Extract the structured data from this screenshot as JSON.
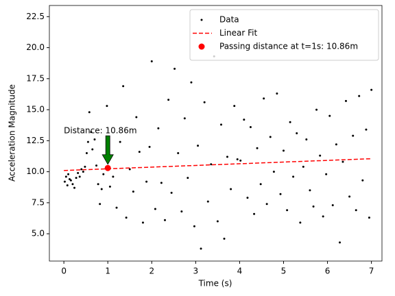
{
  "chart_data": {
    "type": "scatter",
    "xlabel": "Time (s)",
    "ylabel": "Acceleration Magnitude",
    "xlim": [
      -0.33,
      7.24
    ],
    "ylim": [
      2.8,
      23.4
    ],
    "xticks": [
      0,
      1,
      2,
      3,
      4,
      5,
      6,
      7
    ],
    "yticks": [
      {
        "value": 5,
        "label": "5.0"
      },
      7.5,
      {
        "value": 10,
        "label": "10.0"
      },
      12.5,
      {
        "value": 15,
        "label": "15.0"
      },
      17.5,
      {
        "value": 20,
        "label": "20.0"
      },
      22.5
    ],
    "legend": "upper right",
    "series": [
      {
        "name": "Data",
        "color": "#000000",
        "x": [
          0.02,
          0.05,
          0.08,
          0.1,
          0.13,
          0.16,
          0.2,
          0.24,
          0.28,
          0.32,
          0.36,
          0.4,
          0.44,
          0.48,
          0.52,
          0.55,
          0.58,
          0.62,
          0.65,
          0.7,
          0.74,
          0.78,
          0.82,
          0.86,
          0.9,
          0.94,
          0.98,
          1.05,
          1.12,
          1.2,
          1.28,
          1.35,
          1.42,
          1.5,
          1.58,
          1.65,
          1.72,
          1.8,
          1.88,
          1.95,
          2.0,
          2.08,
          2.15,
          2.22,
          2.3,
          2.38,
          2.45,
          2.52,
          2.6,
          2.68,
          2.75,
          2.82,
          2.9,
          2.97,
          3.05,
          3.12,
          3.2,
          3.28,
          3.35,
          3.42,
          3.5,
          3.58,
          3.65,
          3.72,
          3.8,
          3.88,
          3.95,
          4.02,
          4.1,
          4.18,
          4.25,
          4.33,
          4.4,
          4.48,
          4.55,
          4.62,
          4.7,
          4.78,
          4.85,
          4.93,
          5.0,
          5.08,
          5.15,
          5.22,
          5.3,
          5.38,
          5.45,
          5.52,
          5.6,
          5.68,
          5.75,
          5.83,
          5.9,
          5.97,
          6.05,
          6.12,
          6.2,
          6.28,
          6.35,
          6.42,
          6.5,
          6.58,
          6.65,
          6.72,
          6.8,
          6.88,
          6.95,
          7.0
        ],
        "values": [
          9.2,
          9.6,
          8.9,
          9.8,
          9.4,
          9.3,
          9.0,
          8.7,
          9.5,
          9.9,
          9.6,
          10.2,
          10.0,
          10.4,
          11.5,
          12.4,
          14.8,
          13.2,
          11.8,
          12.6,
          10.5,
          9.0,
          7.4,
          8.6,
          9.8,
          11.3,
          15.3,
          8.8,
          9.6,
          7.1,
          12.4,
          16.9,
          6.3,
          10.2,
          8.4,
          14.4,
          11.6,
          5.9,
          9.2,
          12.0,
          18.9,
          7.0,
          13.5,
          9.1,
          6.1,
          15.8,
          8.3,
          18.3,
          11.5,
          6.8,
          14.3,
          9.5,
          17.2,
          5.6,
          12.1,
          3.8,
          15.6,
          7.6,
          10.6,
          19.3,
          6.0,
          13.8,
          4.6,
          11.2,
          8.6,
          15.3,
          11.0,
          10.9,
          14.2,
          7.9,
          13.6,
          6.6,
          11.9,
          9.0,
          15.9,
          7.4,
          12.8,
          10.0,
          16.3,
          8.2,
          11.7,
          6.9,
          14.0,
          9.6,
          13.1,
          5.9,
          10.4,
          12.6,
          8.5,
          7.2,
          15.0,
          11.3,
          6.4,
          9.8,
          14.5,
          7.3,
          12.2,
          4.3,
          10.8,
          15.7,
          8.0,
          12.9,
          6.9,
          16.1,
          9.3,
          13.4,
          6.3,
          16.6
        ]
      },
      {
        "name": "Linear Fit",
        "color": "#ff0000",
        "x": [
          0,
          7
        ],
        "values": [
          10.1,
          11.05
        ]
      },
      {
        "name": "Passing distance at t=1s: 10.86m",
        "color": "#ff0000",
        "x": [
          1
        ],
        "values": [
          10.3
        ]
      }
    ],
    "annotation": {
      "text": "Distance: 10.86m",
      "color": "#008000",
      "text_xy": [
        0,
        13.3
      ],
      "arrow_start": [
        1,
        12.9
      ],
      "arrow_end": [
        1,
        10.6
      ]
    }
  }
}
